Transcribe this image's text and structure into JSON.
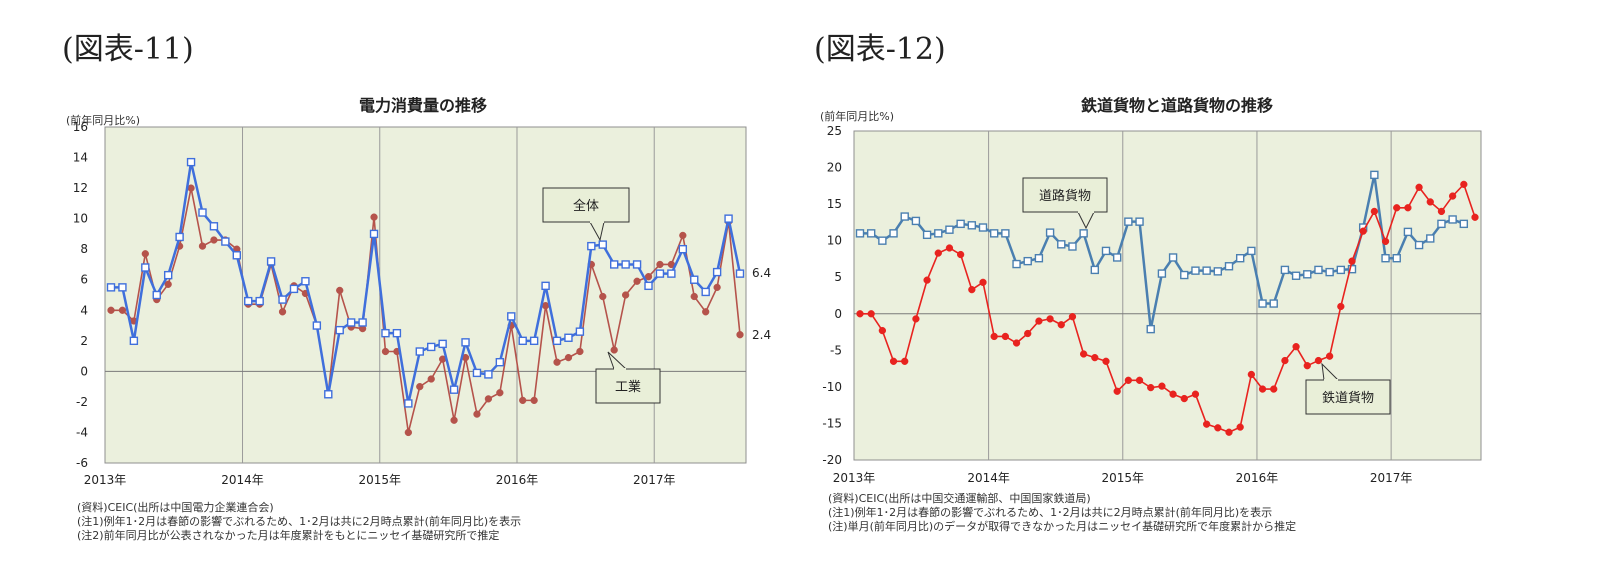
{
  "figures": [
    {
      "label": "(図表-11)",
      "unit": "(前年同月比%)",
      "notes": [
        "(資料)CEIC(出所は中国電力企業連合会)",
        "(注1)例年1･2月は春節の影響でぶれるため、1･2月は共に2月時点累計(前年同月比)を表示",
        "(注2)前年同月比が公表されなかった月は年度累計をもとにニッセイ基礎研究所で推定"
      ]
    },
    {
      "label": "(図表-12)",
      "unit": "(前年同月比%)",
      "notes": [
        "(資料)CEIC(出所は中国交通運輸部、中国国家鉄道局)",
        "(注1)例年1･2月は春節の影響でぶれるため、1･2月は共に2月時点累計(前年同月比)を表示",
        "(注)単月(前年同月比)のデータが取得できなかった月はニッセイ基礎研究所で年度累計から推定"
      ]
    }
  ],
  "chart_data": [
    {
      "type": "line",
      "title": "電力消費量の推移",
      "ylabel": "(前年同月比%)",
      "ylim": [
        -6,
        16
      ],
      "yticks": [
        -6,
        -4,
        -2,
        0,
        2,
        4,
        6,
        8,
        10,
        12,
        14,
        16
      ],
      "x_start": "2013-01",
      "xticks": [
        "2013年",
        "2014年",
        "2015年",
        "2016年",
        "2017年"
      ],
      "grid": true,
      "series": [
        {
          "name": "全体",
          "color": "#3f6fdc",
          "marker": "square-open",
          "values": [
            5.5,
            5.5,
            2.0,
            6.8,
            5.0,
            6.3,
            8.8,
            13.7,
            10.4,
            9.5,
            8.5,
            7.6,
            4.6,
            4.6,
            7.2,
            4.7,
            5.4,
            5.9,
            3.0,
            -1.5,
            2.7,
            3.2,
            3.2,
            9.0,
            2.5,
            2.5,
            -2.1,
            1.3,
            1.6,
            1.8,
            -1.2,
            1.9,
            -0.1,
            -0.2,
            0.6,
            3.6,
            2.0,
            2.0,
            5.6,
            2.0,
            2.2,
            2.6,
            8.2,
            8.3,
            7.0,
            7.0,
            7.0,
            5.6,
            6.4,
            6.4,
            8.0,
            6.0,
            5.2,
            6.5,
            10.0,
            6.4
          ]
        },
        {
          "name": "工業",
          "color": "#b5534b",
          "marker": "circle-filled",
          "values": [
            4.0,
            4.0,
            3.3,
            7.7,
            4.7,
            5.7,
            8.2,
            12.0,
            8.2,
            8.6,
            8.6,
            8.0,
            4.4,
            4.4,
            7.0,
            3.9,
            5.6,
            5.1,
            3.0,
            -1.4,
            5.3,
            2.9,
            2.8,
            10.1,
            1.3,
            1.3,
            -4.0,
            -1.0,
            -0.5,
            0.8,
            -3.2,
            0.9,
            -2.8,
            -1.8,
            -1.4,
            3.0,
            -1.9,
            -1.9,
            4.3,
            0.6,
            0.9,
            1.3,
            7.0,
            4.9,
            1.4,
            5.0,
            5.9,
            6.2,
            7.0,
            7.0,
            8.9,
            4.9,
            3.9,
            5.5,
            9.8,
            2.4
          ]
        }
      ],
      "annotations": [
        {
          "text": "全体"
        },
        {
          "text": "工業"
        },
        {
          "text": "6.4"
        },
        {
          "text": "2.4"
        }
      ]
    },
    {
      "type": "line",
      "title": "鉄道貨物と道路貨物の推移",
      "ylabel": "(前年同月比%)",
      "ylim": [
        -20,
        25
      ],
      "yticks": [
        -20,
        -15,
        -10,
        -5,
        0,
        5,
        10,
        15,
        20,
        25
      ],
      "x_start": "2013-01",
      "xticks": [
        "2013年",
        "2014年",
        "2015年",
        "2016年",
        "2017年"
      ],
      "grid": true,
      "series": [
        {
          "name": "道路貨物",
          "color": "#4a7fb0",
          "marker": "square-open",
          "values": [
            11.0,
            11.0,
            10.0,
            11.0,
            13.3,
            12.7,
            10.8,
            11.0,
            11.5,
            12.3,
            12.1,
            11.8,
            11.0,
            11.0,
            6.8,
            7.2,
            7.6,
            11.1,
            9.5,
            9.2,
            11.0,
            6.0,
            8.6,
            7.7,
            12.6,
            12.6,
            -2.1,
            5.5,
            7.7,
            5.3,
            5.9,
            5.9,
            5.8,
            6.5,
            7.6,
            8.6,
            1.4,
            1.4,
            6.0,
            5.2,
            5.4,
            6.0,
            5.7,
            6.0,
            6.1,
            11.8,
            19.0,
            7.6,
            7.6,
            11.2,
            9.4,
            10.3,
            12.3,
            12.9,
            12.3
          ]
        },
        {
          "name": "鉄道貨物",
          "color": "#e8231f",
          "marker": "circle-filled",
          "values": [
            0.0,
            0.0,
            -2.3,
            -6.5,
            -6.5,
            -0.7,
            4.6,
            8.3,
            9.0,
            8.1,
            3.3,
            4.3,
            -3.1,
            -3.1,
            -4.0,
            -2.7,
            -1.0,
            -0.7,
            -1.5,
            -0.4,
            -5.5,
            -6.0,
            -6.5,
            -10.6,
            -9.1,
            -9.1,
            -10.1,
            -9.9,
            -11.0,
            -11.6,
            -11.0,
            -15.1,
            -15.6,
            -16.2,
            -15.5,
            -8.3,
            -10.3,
            -10.3,
            -6.4,
            -4.5,
            -7.1,
            -6.4,
            -5.8,
            1.0,
            7.2,
            11.3,
            14.0,
            9.9,
            14.5,
            14.5,
            17.3,
            15.3,
            14.0,
            16.1,
            17.7,
            13.2
          ]
        }
      ],
      "annotations": [
        {
          "text": "道路貨物"
        },
        {
          "text": "鉄道貨物"
        }
      ]
    }
  ]
}
